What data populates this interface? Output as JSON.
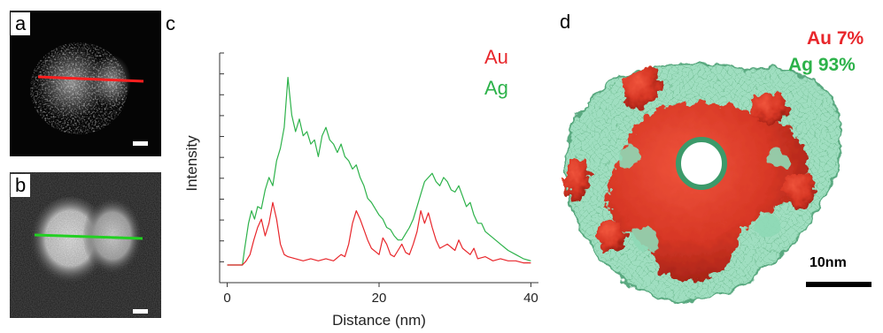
{
  "panels": {
    "a": {
      "letter": "a"
    },
    "b": {
      "letter": "b"
    },
    "c": {
      "letter": "c"
    },
    "d": {
      "letter": "d"
    }
  },
  "colors": {
    "au": "#e8262b",
    "ag": "#2db24a",
    "green_line": "#22c522",
    "red_line": "#ff2020"
  },
  "legend": {
    "au": "Au",
    "ag": "Ag"
  },
  "composition": {
    "au": "Au 7%",
    "ag": "Ag 93%"
  },
  "scale": {
    "label": "10nm"
  },
  "chart_data": {
    "type": "line",
    "xlabel": "Distance (nm)",
    "ylabel": "Intensity",
    "xlim": [
      -1,
      41
    ],
    "ylim": [
      0,
      1
    ],
    "xticks": [
      0,
      20,
      40
    ],
    "yticks_unlabeled": 11,
    "grid": false,
    "legend_position": "top-right",
    "series": [
      {
        "name": "Au",
        "color": "#e8262b",
        "points": [
          [
            0,
            0.0
          ],
          [
            1,
            0.0
          ],
          [
            2,
            0.0
          ],
          [
            2.5,
            0.02
          ],
          [
            3,
            0.05
          ],
          [
            3.5,
            0.12
          ],
          [
            4,
            0.18
          ],
          [
            4.5,
            0.22
          ],
          [
            5,
            0.14
          ],
          [
            5.5,
            0.2
          ],
          [
            6,
            0.3
          ],
          [
            6.5,
            0.22
          ],
          [
            7,
            0.1
          ],
          [
            7.5,
            0.05
          ],
          [
            8,
            0.04
          ],
          [
            9,
            0.03
          ],
          [
            10,
            0.02
          ],
          [
            11,
            0.03
          ],
          [
            12,
            0.02
          ],
          [
            13,
            0.03
          ],
          [
            14,
            0.02
          ],
          [
            15,
            0.05
          ],
          [
            15.5,
            0.04
          ],
          [
            16,
            0.1
          ],
          [
            16.5,
            0.2
          ],
          [
            17,
            0.26
          ],
          [
            17.5,
            0.22
          ],
          [
            18,
            0.17
          ],
          [
            18.5,
            0.12
          ],
          [
            19,
            0.08
          ],
          [
            20,
            0.05
          ],
          [
            20.5,
            0.13
          ],
          [
            21,
            0.1
          ],
          [
            21.5,
            0.05
          ],
          [
            22,
            0.04
          ],
          [
            22.5,
            0.07
          ],
          [
            23,
            0.1
          ],
          [
            23.5,
            0.06
          ],
          [
            24,
            0.05
          ],
          [
            24.5,
            0.1
          ],
          [
            25,
            0.16
          ],
          [
            25.5,
            0.26
          ],
          [
            26,
            0.2
          ],
          [
            26.5,
            0.25
          ],
          [
            27,
            0.18
          ],
          [
            27.5,
            0.12
          ],
          [
            28,
            0.08
          ],
          [
            29,
            0.1
          ],
          [
            30,
            0.07
          ],
          [
            30.5,
            0.12
          ],
          [
            31,
            0.08
          ],
          [
            32,
            0.05
          ],
          [
            32.5,
            0.08
          ],
          [
            33,
            0.03
          ],
          [
            34,
            0.04
          ],
          [
            35,
            0.02
          ],
          [
            36,
            0.03
          ],
          [
            37,
            0.02
          ],
          [
            38,
            0.02
          ],
          [
            39,
            0.01
          ],
          [
            40,
            0.01
          ]
        ]
      },
      {
        "name": "Ag",
        "color": "#2db24a",
        "points": [
          [
            0,
            0.0
          ],
          [
            1,
            0.0
          ],
          [
            2,
            0.0
          ],
          [
            2.3,
            0.08
          ],
          [
            2.8,
            0.2
          ],
          [
            3.2,
            0.26
          ],
          [
            3.6,
            0.22
          ],
          [
            4,
            0.28
          ],
          [
            4.5,
            0.27
          ],
          [
            5,
            0.36
          ],
          [
            5.5,
            0.42
          ],
          [
            6,
            0.38
          ],
          [
            6.5,
            0.5
          ],
          [
            7,
            0.56
          ],
          [
            7.5,
            0.66
          ],
          [
            8,
            0.9
          ],
          [
            8.5,
            0.72
          ],
          [
            9,
            0.64
          ],
          [
            9.5,
            0.7
          ],
          [
            10,
            0.62
          ],
          [
            10.5,
            0.64
          ],
          [
            11,
            0.58
          ],
          [
            11.5,
            0.6
          ],
          [
            12,
            0.52
          ],
          [
            12.5,
            0.62
          ],
          [
            13,
            0.66
          ],
          [
            13.5,
            0.6
          ],
          [
            14,
            0.58
          ],
          [
            14.5,
            0.54
          ],
          [
            15,
            0.58
          ],
          [
            15.5,
            0.52
          ],
          [
            16,
            0.5
          ],
          [
            16.5,
            0.46
          ],
          [
            17,
            0.48
          ],
          [
            17.5,
            0.42
          ],
          [
            18,
            0.38
          ],
          [
            18.5,
            0.32
          ],
          [
            19,
            0.3
          ],
          [
            19.5,
            0.27
          ],
          [
            20,
            0.24
          ],
          [
            20.5,
            0.22
          ],
          [
            21,
            0.18
          ],
          [
            21.5,
            0.17
          ],
          [
            22,
            0.14
          ],
          [
            22.5,
            0.12
          ],
          [
            23,
            0.12
          ],
          [
            23.5,
            0.15
          ],
          [
            24,
            0.18
          ],
          [
            24.5,
            0.22
          ],
          [
            25,
            0.28
          ],
          [
            25.5,
            0.34
          ],
          [
            26,
            0.4
          ],
          [
            26.5,
            0.42
          ],
          [
            27,
            0.44
          ],
          [
            27.5,
            0.4
          ],
          [
            28,
            0.38
          ],
          [
            28.5,
            0.42
          ],
          [
            29,
            0.4
          ],
          [
            29.5,
            0.36
          ],
          [
            30,
            0.35
          ],
          [
            30.5,
            0.38
          ],
          [
            31,
            0.33
          ],
          [
            31.5,
            0.28
          ],
          [
            32,
            0.3
          ],
          [
            32.5,
            0.24
          ],
          [
            33,
            0.2
          ],
          [
            33.5,
            0.2
          ],
          [
            34,
            0.16
          ],
          [
            35,
            0.13
          ],
          [
            36,
            0.1
          ],
          [
            37,
            0.07
          ],
          [
            38,
            0.05
          ],
          [
            39,
            0.03
          ],
          [
            40,
            0.02
          ]
        ]
      }
    ]
  }
}
